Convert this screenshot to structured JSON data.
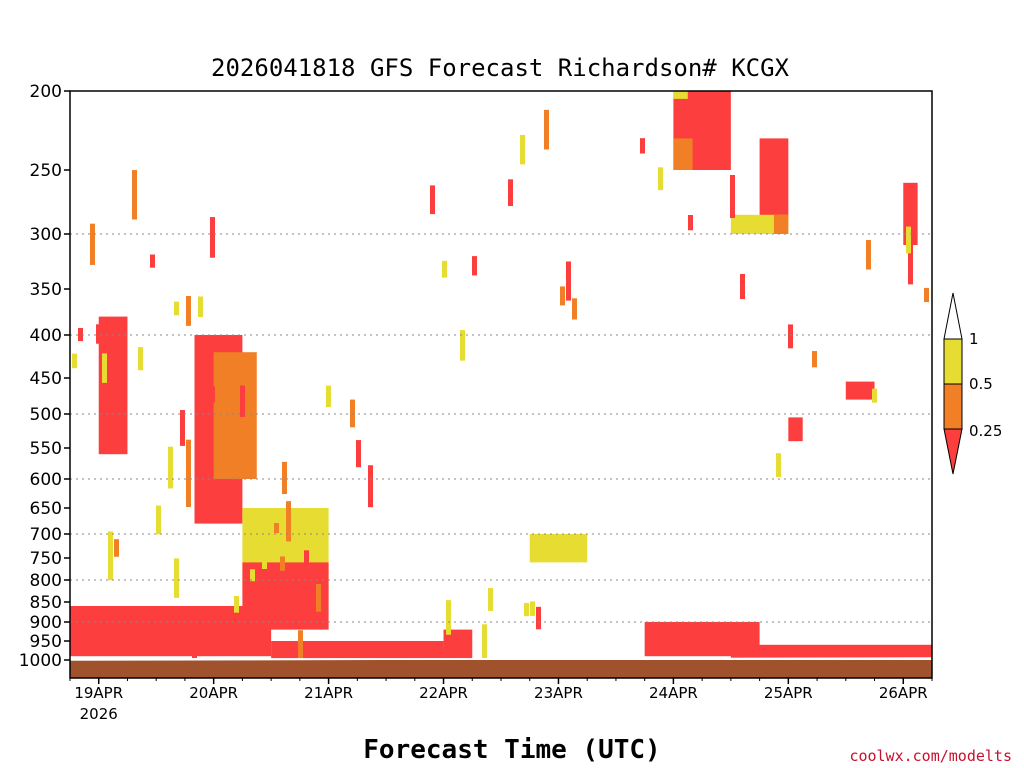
{
  "chart_data": {
    "type": "heatmap",
    "title": "2026041818 GFS Forecast Richardson# KCGX",
    "xlabel": "Forecast Time (UTC)",
    "ylabel": "",
    "credit": "coolwx.com/modelts",
    "y_axis": {
      "quantity": "pressure (hPa)",
      "ylim": [
        1000,
        200
      ],
      "ticks": [
        200,
        250,
        300,
        350,
        400,
        450,
        500,
        550,
        600,
        650,
        700,
        750,
        800,
        850,
        900,
        950,
        1000
      ],
      "tick_labels": [
        "200",
        "250",
        "300",
        "350",
        "400",
        "450",
        "500",
        "550",
        "600",
        "650",
        "700",
        "750",
        "800",
        "850",
        "900",
        "950",
        "1000"
      ],
      "gridlines_at": [
        300,
        400,
        500,
        600,
        700,
        800,
        900
      ],
      "grid": "dotted"
    },
    "x_axis": {
      "quantity": "forecast time (UTC)",
      "xlim": [
        "2026-04-18T18Z",
        "2026-04-26T06Z"
      ],
      "ticks": [
        {
          "time": "2026-04-19T00Z",
          "label": "19APR",
          "sublabel": "2026"
        },
        {
          "time": "2026-04-20T00Z",
          "label": "20APR",
          "sublabel": ""
        },
        {
          "time": "2026-04-21T00Z",
          "label": "21APR",
          "sublabel": ""
        },
        {
          "time": "2026-04-22T00Z",
          "label": "22APR",
          "sublabel": ""
        },
        {
          "time": "2026-04-23T00Z",
          "label": "23APR",
          "sublabel": ""
        },
        {
          "time": "2026-04-24T00Z",
          "label": "24APR",
          "sublabel": ""
        },
        {
          "time": "2026-04-25T00Z",
          "label": "25APR",
          "sublabel": ""
        },
        {
          "time": "2026-04-26T00Z",
          "label": "26APR",
          "sublabel": ""
        }
      ]
    },
    "legend": {
      "placement": "right",
      "levels": [
        {
          "label": "1",
          "value": 1
        },
        {
          "label": "0.5",
          "value": 0.5
        },
        {
          "label": "0.25",
          "value": 0.25
        }
      ],
      "bins": [
        {
          "range": "0.5–1",
          "color": "#e6dc32"
        },
        {
          "range": "0.25–0.5",
          "color": "#f07f26"
        },
        {
          "range": "<0.25",
          "color": "#fc3e3e"
        }
      ],
      "over_color": "#ffffff"
    },
    "colors": {
      "ri_0_5_to_1": "#e6dc32",
      "ri_0_25_to_0_5": "#f07f26",
      "ri_below_0_25": "#fc3e3e",
      "ground": "#a0522d"
    },
    "regions": [
      {
        "bin": "<0.25",
        "time_start": "2026-04-18T18Z",
        "time_end": "2026-04-20T12Z",
        "p_top": 860,
        "p_bottom": 990
      },
      {
        "bin": "<0.25",
        "time_start": "2026-04-19T00Z",
        "time_end": "2026-04-19T06Z",
        "p_top": 380,
        "p_bottom": 560
      },
      {
        "bin": "<0.25",
        "time_start": "2026-04-19T20Z",
        "time_end": "2026-04-20T06Z",
        "p_top": 400,
        "p_bottom": 680
      },
      {
        "bin": "0.25–0.5",
        "time_start": "2026-04-20T00Z",
        "time_end": "2026-04-20T09Z",
        "p_top": 420,
        "p_bottom": 600
      },
      {
        "bin": "0.5–1",
        "time_start": "2026-04-20T06Z",
        "time_end": "2026-04-21T00Z",
        "p_top": 650,
        "p_bottom": 840
      },
      {
        "bin": "<0.25",
        "time_start": "2026-04-20T06Z",
        "time_end": "2026-04-21T00Z",
        "p_top": 760,
        "p_bottom": 920
      },
      {
        "bin": "<0.25",
        "time_start": "2026-04-20T12Z",
        "time_end": "2026-04-22T00Z",
        "p_top": 950,
        "p_bottom": 995
      },
      {
        "bin": "<0.25",
        "time_start": "2026-04-22T00Z",
        "time_end": "2026-04-22T06Z",
        "p_top": 920,
        "p_bottom": 995
      },
      {
        "bin": "0.5–1",
        "time_start": "2026-04-22T18Z",
        "time_end": "2026-04-23T06Z",
        "p_top": 700,
        "p_bottom": 760
      },
      {
        "bin": "<0.25",
        "time_start": "2026-04-23T18Z",
        "time_end": "2026-04-24T18Z",
        "p_top": 900,
        "p_bottom": 990
      },
      {
        "bin": "<0.25",
        "time_start": "2026-04-24T00Z",
        "time_end": "2026-04-24T12Z",
        "p_top": 200,
        "p_bottom": 250
      },
      {
        "bin": "0.25–0.5",
        "time_start": "2026-04-24T00Z",
        "time_end": "2026-04-24T04Z",
        "p_top": 230,
        "p_bottom": 250
      },
      {
        "bin": "0.5–1",
        "time_start": "2026-04-24T00Z",
        "time_end": "2026-04-24T03Z",
        "p_top": 200,
        "p_bottom": 205
      },
      {
        "bin": "<0.25",
        "time_start": "2026-04-24T18Z",
        "time_end": "2026-04-25T00Z",
        "p_top": 230,
        "p_bottom": 290
      },
      {
        "bin": "0.5–1",
        "time_start": "2026-04-24T12Z",
        "time_end": "2026-04-25T00Z",
        "p_top": 285,
        "p_bottom": 300
      },
      {
        "bin": "0.25–0.5",
        "time_start": "2026-04-24T21Z",
        "time_end": "2026-04-25T00Z",
        "p_top": 285,
        "p_bottom": 300
      },
      {
        "bin": "<0.25",
        "time_start": "2026-04-25T00Z",
        "time_end": "2026-04-25T03Z",
        "p_top": 505,
        "p_bottom": 540
      },
      {
        "bin": "<0.25",
        "time_start": "2026-04-25T12Z",
        "time_end": "2026-04-25T18Z",
        "p_top": 455,
        "p_bottom": 480
      },
      {
        "bin": "<0.25",
        "time_start": "2026-04-26T00Z",
        "time_end": "2026-04-26T03Z",
        "p_top": 260,
        "p_bottom": 310
      },
      {
        "bin": "<0.25",
        "time_start": "2026-04-24T12Z",
        "time_end": "2026-04-26T06Z",
        "p_top": 960,
        "p_bottom": 995
      }
    ]
  }
}
